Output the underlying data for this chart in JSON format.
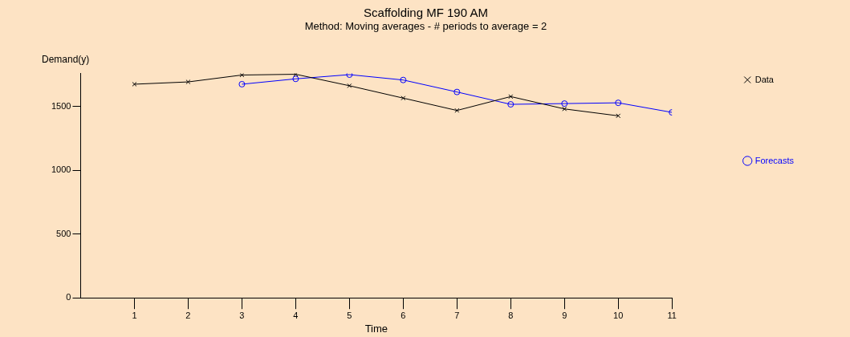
{
  "chart_data": {
    "type": "line",
    "title": "Scaffolding MF 190 AM",
    "subtitle": "Method: Moving averages - # periods to average = 2",
    "xlabel": "Time",
    "ylabel": "Demand(y)",
    "xlim": [
      0,
      11
    ],
    "xticks": [
      1,
      2,
      3,
      4,
      5,
      6,
      7,
      8,
      9,
      10,
      11
    ],
    "ylim": [
      0,
      1760
    ],
    "yticks": [
      0,
      500,
      1000,
      1500
    ],
    "legend": "top right",
    "grid": false,
    "series": [
      {
        "name": "Data",
        "color": "#000000",
        "marker": "cross",
        "x": [
          1,
          2,
          3,
          4,
          5,
          6,
          7,
          8,
          9,
          10
        ],
        "values": [
          1676,
          1694,
          1748,
          1754,
          1664,
          1567,
          1470,
          1579,
          1482,
          1428
        ]
      },
      {
        "name": "Forecasts",
        "color": "#0000ff",
        "marker": "circle",
        "x": [
          3,
          4,
          5,
          6,
          7,
          8,
          9,
          10,
          11
        ],
        "values": [
          1676,
          1718,
          1751,
          1709,
          1615,
          1518,
          1524,
          1530,
          1455
        ]
      }
    ]
  }
}
